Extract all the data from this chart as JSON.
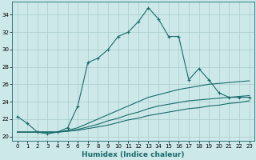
{
  "title": "",
  "xlabel": "Humidex (Indice chaleur)",
  "ylabel": "",
  "background_color": "#cce8e8",
  "grid_color": "#aacccc",
  "line_color": "#1a6b6b",
  "xlim": [
    -0.5,
    23.5
  ],
  "ylim": [
    19.5,
    35.5
  ],
  "yticks": [
    20,
    22,
    24,
    26,
    28,
    30,
    32,
    34
  ],
  "xticks": [
    0,
    1,
    2,
    3,
    4,
    5,
    6,
    7,
    8,
    9,
    10,
    11,
    12,
    13,
    14,
    15,
    16,
    17,
    18,
    19,
    20,
    21,
    22,
    23
  ],
  "series": [
    {
      "x": [
        0,
        1,
        2,
        3,
        4,
        5,
        6,
        7,
        8,
        9,
        10,
        11,
        12,
        13,
        14,
        15,
        16,
        17,
        18,
        19,
        20,
        21,
        22,
        23
      ],
      "y": [
        22.3,
        21.5,
        20.5,
        20.3,
        20.5,
        21.0,
        23.5,
        28.5,
        29.0,
        30.0,
        31.5,
        32.0,
        33.2,
        34.8,
        33.5,
        31.5,
        31.5,
        26.5,
        27.8,
        26.5,
        25.0,
        24.5,
        24.5,
        24.5
      ],
      "marker": true
    },
    {
      "x": [
        0,
        1,
        2,
        3,
        4,
        5,
        6,
        7,
        8,
        9,
        10,
        11,
        12,
        13,
        14,
        15,
        16,
        17,
        18,
        19,
        20,
        21,
        22,
        23
      ],
      "y": [
        20.5,
        20.5,
        20.5,
        20.5,
        20.5,
        20.7,
        21.0,
        21.5,
        22.0,
        22.5,
        23.0,
        23.5,
        24.0,
        24.5,
        24.8,
        25.1,
        25.4,
        25.6,
        25.8,
        26.0,
        26.1,
        26.2,
        26.3,
        26.4
      ],
      "marker": false
    },
    {
      "x": [
        0,
        1,
        2,
        3,
        4,
        5,
        6,
        7,
        8,
        9,
        10,
        11,
        12,
        13,
        14,
        15,
        16,
        17,
        18,
        19,
        20,
        21,
        22,
        23
      ],
      "y": [
        20.5,
        20.5,
        20.5,
        20.5,
        20.5,
        20.6,
        20.8,
        21.1,
        21.4,
        21.8,
        22.1,
        22.5,
        22.8,
        23.2,
        23.5,
        23.7,
        23.9,
        24.1,
        24.2,
        24.3,
        24.4,
        24.5,
        24.6,
        24.7
      ],
      "marker": false
    },
    {
      "x": [
        0,
        1,
        2,
        3,
        4,
        5,
        6,
        7,
        8,
        9,
        10,
        11,
        12,
        13,
        14,
        15,
        16,
        17,
        18,
        19,
        20,
        21,
        22,
        23
      ],
      "y": [
        20.5,
        20.5,
        20.5,
        20.5,
        20.5,
        20.6,
        20.7,
        20.9,
        21.1,
        21.3,
        21.6,
        21.9,
        22.1,
        22.4,
        22.6,
        22.8,
        23.0,
        23.2,
        23.3,
        23.5,
        23.6,
        23.8,
        23.9,
        24.1
      ],
      "marker": false
    }
  ]
}
